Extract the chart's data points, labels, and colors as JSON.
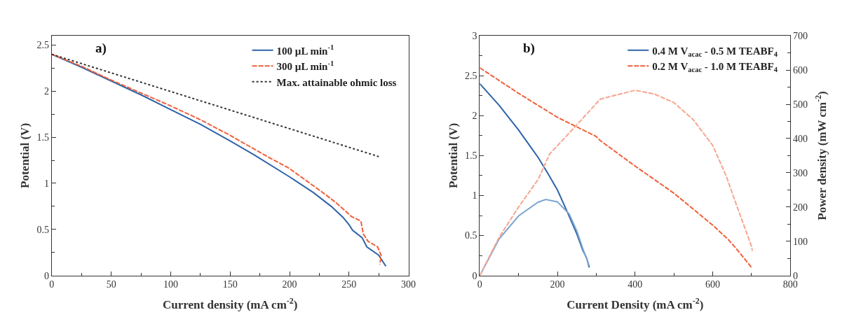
{
  "chart_data": [
    {
      "type": "line",
      "annotations": [
        "a)"
      ],
      "xlabel": "Current density (mA cm$^{-2}$)",
      "ylabel": "Potential (V)",
      "xlim": [
        0,
        300
      ],
      "xticks": [
        0,
        50,
        100,
        150,
        200,
        250,
        300
      ],
      "ylim": [
        0,
        2.6
      ],
      "yticks": [
        0,
        0.5,
        1,
        1.5,
        2,
        2.5
      ],
      "legend": "top right",
      "marker": "none",
      "series": [
        {
          "name": "100 µL min$^{-1}$",
          "color": "#2e64a8",
          "line_style": "solid",
          "x": [
            0,
            25,
            50,
            75,
            100,
            125,
            150,
            170,
            200,
            220,
            235,
            245,
            250,
            253,
            261,
            265,
            275,
            281
          ],
          "values": [
            2.4,
            2.26,
            2.11,
            1.96,
            1.8,
            1.64,
            1.46,
            1.31,
            1.07,
            0.9,
            0.75,
            0.63,
            0.55,
            0.49,
            0.41,
            0.31,
            0.22,
            0.1
          ]
        },
        {
          "name": "300 µL min$^{-1}$",
          "color": "#f0603a",
          "line_style": "dashed",
          "x": [
            0,
            25,
            50,
            75,
            100,
            125,
            150,
            180,
            200,
            230,
            240,
            252,
            260,
            262,
            266,
            274,
            277,
            276
          ],
          "values": [
            2.4,
            2.27,
            2.12,
            1.98,
            1.84,
            1.69,
            1.52,
            1.3,
            1.16,
            0.88,
            0.78,
            0.64,
            0.59,
            0.45,
            0.37,
            0.31,
            0.22,
            0.12
          ]
        },
        {
          "name": "Max. attainable ohmic loss",
          "color": "#333333",
          "line_style": "dotted",
          "x": [
            0,
            275
          ],
          "values": [
            2.4,
            1.29
          ]
        }
      ]
    },
    {
      "type": "line",
      "annotations": [
        "b)"
      ],
      "xlabel": "Current Density (mA cm$^{-2}$)",
      "ylabel": "Potential (V)",
      "y2label": "Power density (mW cm$^{-2}$)",
      "xlim": [
        0,
        800
      ],
      "xticks": [
        0,
        200,
        400,
        600,
        800
      ],
      "ylim": [
        0,
        3
      ],
      "yticks": [
        0,
        0.5,
        1,
        1.5,
        2,
        2.5,
        3
      ],
      "y2lim": [
        0,
        700
      ],
      "y2ticks": [
        0,
        100,
        200,
        300,
        400,
        500,
        600,
        700
      ],
      "legend": "top right",
      "marker": "none",
      "series": [
        {
          "name": "0.4 M V$_{acac}$ - 0.5 M TEABF$_{4}$",
          "color": "#2e64a8",
          "line_style": "solid",
          "x": [
            0,
            50,
            100,
            150,
            175,
            200,
            225,
            250,
            265,
            275,
            282
          ],
          "values": [
            2.4,
            2.13,
            1.82,
            1.48,
            1.28,
            1.07,
            0.8,
            0.52,
            0.32,
            0.22,
            0.1
          ]
        },
        {
          "name": "0.2 M V$_{acac}$ - 1.0 M TEABF$_{4}$",
          "color": "#f0603a",
          "line_style": "dashed",
          "x": [
            0,
            100,
            200,
            300,
            310,
            400,
            500,
            600,
            640,
            660,
            700
          ],
          "values": [
            2.6,
            2.28,
            1.98,
            1.74,
            1.69,
            1.37,
            1.03,
            0.63,
            0.45,
            0.34,
            0.1
          ]
        },
        {
          "color": "#7fa6cf",
          "line_style": "solid",
          "axis": "y2",
          "x": [
            0,
            50,
            100,
            150,
            170,
            200,
            230,
            250,
            265,
            282
          ],
          "values": [
            0,
            107,
            174,
            214,
            222,
            215,
            180,
            130,
            80,
            28
          ]
        },
        {
          "color": "#f6a58e",
          "line_style": "dashed",
          "axis": "y2",
          "x": [
            0,
            50,
            100,
            150,
            180,
            250,
            310,
            400,
            450,
            500,
            550,
            600,
            635,
            660,
            700,
            702
          ],
          "values": [
            0,
            112,
            200,
            280,
            355,
            440,
            515,
            541,
            530,
            505,
            455,
            380,
            290,
            210,
            85,
            72
          ]
        }
      ]
    }
  ]
}
